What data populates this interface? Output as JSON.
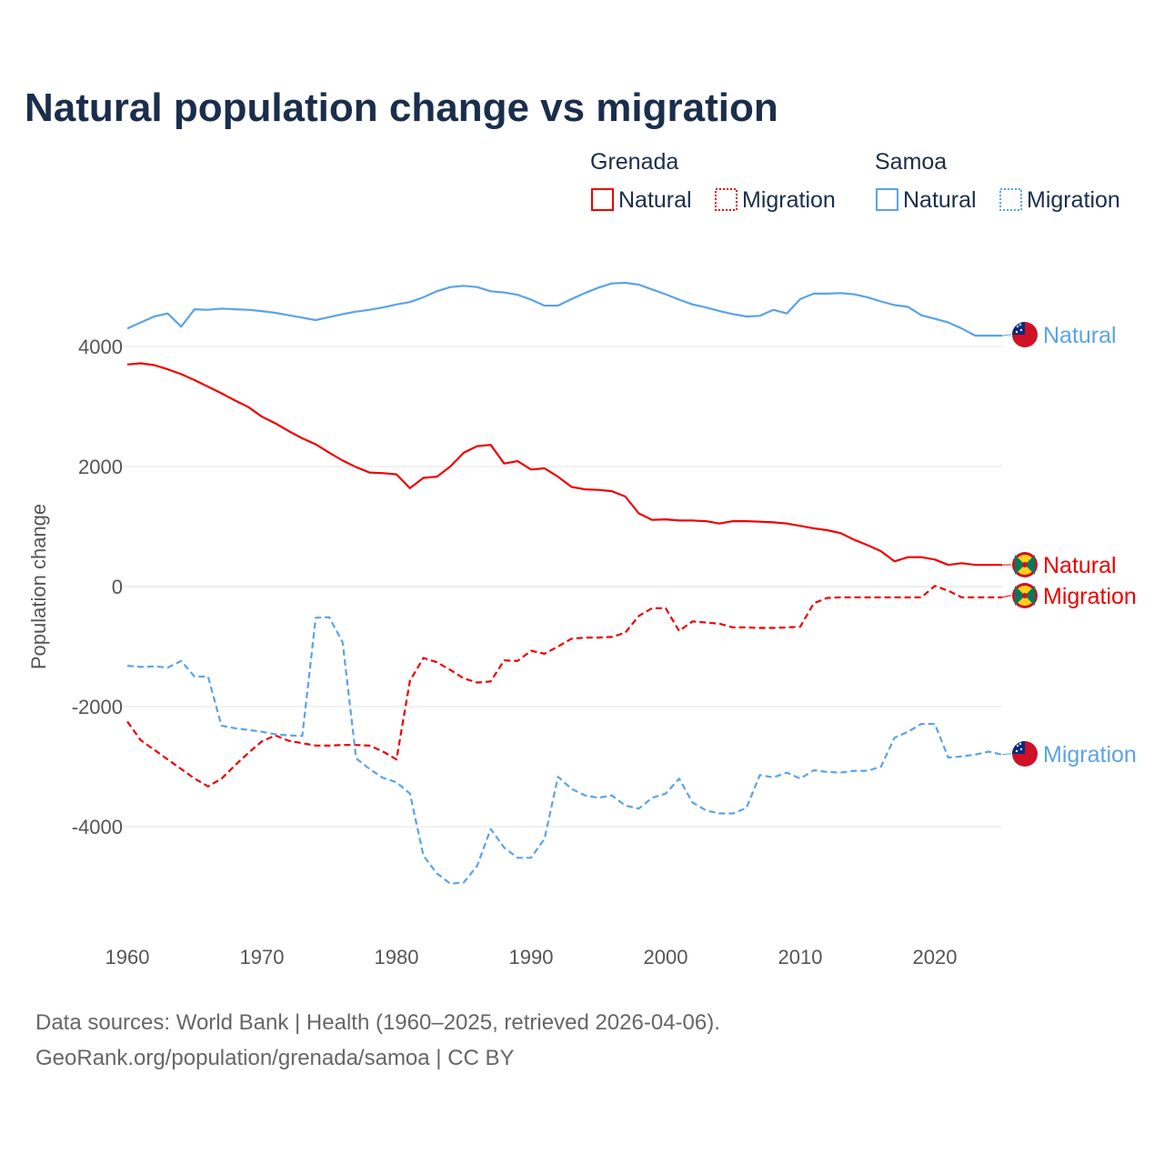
{
  "chart_data": {
    "type": "line",
    "title": "Natural population change vs migration",
    "xlabel": "",
    "ylabel": "Population change",
    "xlim": [
      1960,
      2025
    ],
    "ylim": [
      -5300,
      5300
    ],
    "x_ticks": [
      1960,
      1970,
      1980,
      1990,
      2000,
      2010,
      2020
    ],
    "y_ticks": [
      -4000,
      -2000,
      0,
      2000,
      4000
    ],
    "y_tick_labels": [
      "-4000",
      "-2000",
      "0",
      "2000",
      "4000"
    ],
    "grid": true,
    "legend_placement": "top-right",
    "legend": {
      "groups": [
        {
          "name": "Grenada",
          "items": [
            "Natural",
            "Migration"
          ]
        },
        {
          "name": "Samoa",
          "items": [
            "Natural",
            "Migration"
          ]
        }
      ]
    },
    "x": [
      1960,
      1961,
      1962,
      1963,
      1964,
      1965,
      1966,
      1967,
      1968,
      1969,
      1970,
      1971,
      1972,
      1973,
      1974,
      1975,
      1976,
      1977,
      1978,
      1979,
      1980,
      1981,
      1982,
      1983,
      1984,
      1985,
      1986,
      1987,
      1988,
      1989,
      1990,
      1991,
      1992,
      1993,
      1994,
      1995,
      1996,
      1997,
      1998,
      1999,
      2000,
      2001,
      2002,
      2003,
      2004,
      2005,
      2006,
      2007,
      2008,
      2009,
      2010,
      2011,
      2012,
      2013,
      2014,
      2015,
      2016,
      2017,
      2018,
      2019,
      2020,
      2021,
      2022,
      2023,
      2024,
      2025
    ],
    "series": [
      {
        "name": "Natural",
        "country": "Grenada",
        "color": "#ee0000",
        "dash": "solid",
        "end_label": "Natural",
        "values": [
          3700,
          3720,
          3690,
          3620,
          3540,
          3440,
          3330,
          3220,
          3100,
          2990,
          2830,
          2720,
          2590,
          2470,
          2370,
          2230,
          2100,
          1990,
          1900,
          1890,
          1870,
          1640,
          1810,
          1830,
          2000,
          2230,
          2340,
          2360,
          2050,
          2090,
          1950,
          1970,
          1830,
          1660,
          1620,
          1610,
          1590,
          1500,
          1220,
          1110,
          1120,
          1100,
          1100,
          1090,
          1050,
          1090,
          1090,
          1080,
          1070,
          1050,
          1010,
          970,
          940,
          890,
          780,
          690,
          590,
          420,
          490,
          490,
          450,
          360,
          390,
          360,
          360,
          360
        ]
      },
      {
        "name": "Migration",
        "country": "Grenada",
        "color": "#ee0000",
        "dash": "dashed",
        "end_label": "Migration",
        "values": [
          -2250,
          -2560,
          -2720,
          -2880,
          -3040,
          -3200,
          -3330,
          -3200,
          -2980,
          -2770,
          -2580,
          -2480,
          -2570,
          -2610,
          -2650,
          -2650,
          -2640,
          -2640,
          -2650,
          -2750,
          -2880,
          -1570,
          -1190,
          -1260,
          -1390,
          -1530,
          -1600,
          -1580,
          -1230,
          -1240,
          -1070,
          -1120,
          -1000,
          -870,
          -850,
          -850,
          -840,
          -770,
          -490,
          -360,
          -360,
          -740,
          -580,
          -600,
          -620,
          -680,
          -680,
          -690,
          -690,
          -680,
          -670,
          -280,
          -190,
          -180,
          -180,
          -180,
          -180,
          -180,
          -180,
          -180,
          10,
          -70,
          -180,
          -180,
          -180,
          -180
        ]
      },
      {
        "name": "Natural",
        "country": "Samoa",
        "color": "#5ba3e8",
        "dash": "solid",
        "end_label": "Natural",
        "values": [
          4300,
          4400,
          4500,
          4550,
          4330,
          4620,
          4610,
          4630,
          4620,
          4610,
          4590,
          4560,
          4520,
          4480,
          4440,
          4490,
          4540,
          4580,
          4610,
          4650,
          4700,
          4740,
          4820,
          4920,
          4990,
          5010,
          4990,
          4920,
          4900,
          4860,
          4780,
          4680,
          4680,
          4790,
          4890,
          4980,
          5050,
          5060,
          5030,
          4950,
          4870,
          4780,
          4700,
          4650,
          4590,
          4540,
          4500,
          4510,
          4610,
          4550,
          4790,
          4880,
          4880,
          4890,
          4870,
          4820,
          4750,
          4690,
          4660,
          4520,
          4460,
          4400,
          4300,
          4180,
          4180,
          4180
        ]
      },
      {
        "name": "Migration",
        "country": "Samoa",
        "color": "#5ba3e8",
        "dash": "dashed",
        "end_label": "Migration",
        "values": [
          -1320,
          -1340,
          -1330,
          -1350,
          -1240,
          -1500,
          -1500,
          -2320,
          -2360,
          -2390,
          -2420,
          -2460,
          -2480,
          -2490,
          -520,
          -510,
          -930,
          -2860,
          -3040,
          -3190,
          -3260,
          -3450,
          -4480,
          -4780,
          -4950,
          -4930,
          -4650,
          -4040,
          -4350,
          -4520,
          -4520,
          -4200,
          -3170,
          -3370,
          -3480,
          -3520,
          -3480,
          -3650,
          -3700,
          -3520,
          -3450,
          -3200,
          -3600,
          -3730,
          -3780,
          -3780,
          -3690,
          -3140,
          -3180,
          -3100,
          -3200,
          -3060,
          -3090,
          -3100,
          -3070,
          -3070,
          -3000,
          -2520,
          -2420,
          -2290,
          -2290,
          -2850,
          -2830,
          -2800,
          -2750,
          -2800
        ]
      }
    ]
  },
  "footer": {
    "source_line": "Data sources: World Bank | Health (1960–2025, retrieved 2026-04-06).",
    "credit_line": "GeoRank.org/population/grenada/samoa | CC BY"
  }
}
